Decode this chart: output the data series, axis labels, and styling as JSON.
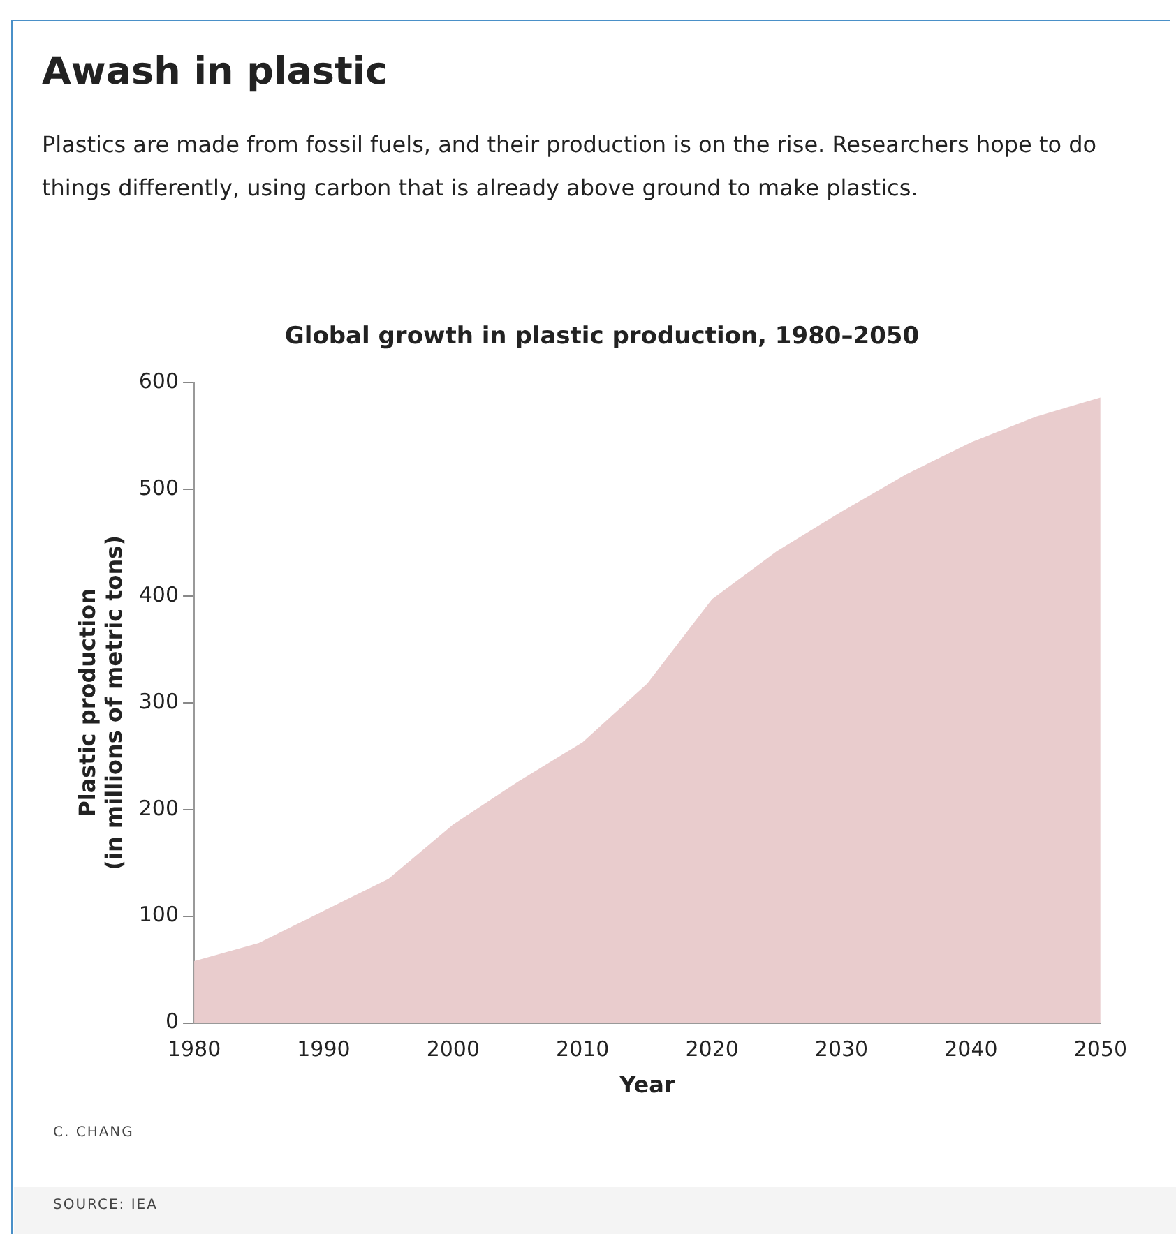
{
  "chart_data": {
    "type": "area",
    "title": "Awash in plastic",
    "subtitle": "Plastics are made from fossil fuels, and their production is on the rise. Researchers hope to do things differently, using carbon that is already above ground to make plastics.",
    "xlabel": "Year",
    "ylabel": "Plastic production\n(in millions of metric tons)",
    "x": [
      1980,
      1985,
      1990,
      1995,
      2000,
      2005,
      2010,
      2015,
      2020,
      2025,
      2030,
      2035,
      2040,
      2045,
      2050
    ],
    "series": [
      {
        "name": null,
        "color": "#e9cccd",
        "values": [
          58,
          75,
          105,
          135,
          186,
          226,
          263,
          318,
          397,
          442,
          479,
          514,
          544,
          568,
          586
        ]
      }
    ],
    "xlim": [
      1980,
      2050
    ],
    "xticks": [
      1980,
      1990,
      2000,
      2010,
      2020,
      2030,
      2040,
      2050
    ],
    "ylim": [
      0,
      600
    ],
    "yticks": [
      0,
      100,
      200,
      300,
      400,
      500,
      600
    ],
    "grid": false,
    "legend": false,
    "annotations": [
      "Global growth in plastic production, 1980–2050",
      "C. CHANG",
      "SOURCE: IEA"
    ]
  }
}
